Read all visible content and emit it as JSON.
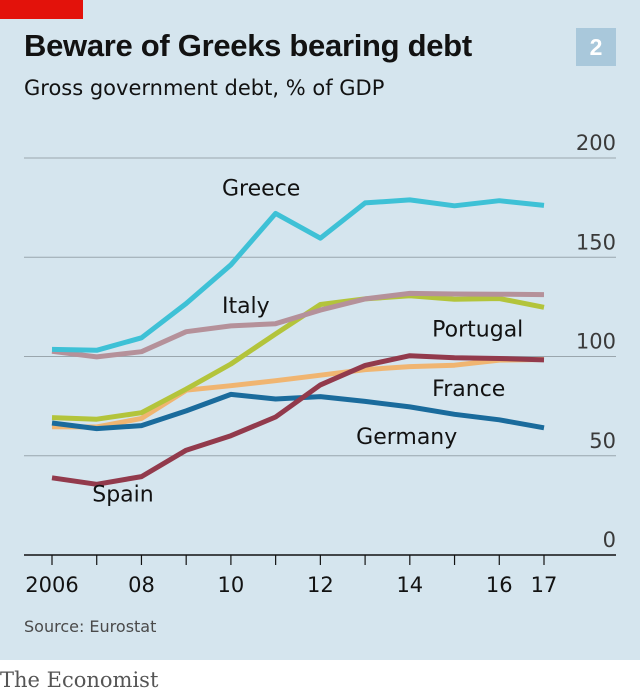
{
  "header": {
    "title": "Beware of Greeks bearing debt",
    "subtitle": "Gross government debt, % of GDP",
    "chart_number": "2"
  },
  "footer": {
    "source": "Source: Eurostat",
    "brand": "The Economist"
  },
  "colors": {
    "background": "#d5e5ee",
    "accent_red": "#e3120b",
    "Greece": "#3ec1d6",
    "Italy": "#b5919a",
    "Portugal": "#b3c43b",
    "France": "#f0b571",
    "Spain": "#923a4c",
    "Germany": "#1a6b9c"
  },
  "chart_data": {
    "type": "line",
    "title": "Beware of Greeks bearing debt",
    "subtitle": "Gross government debt, % of GDP",
    "x": [
      2006,
      2007,
      2008,
      2009,
      2010,
      2011,
      2012,
      2013,
      2014,
      2015,
      2016,
      2017
    ],
    "xticks": [
      2006,
      2008,
      2010,
      2012,
      2014,
      2016,
      2017
    ],
    "xtick_labels": [
      "2006",
      "08",
      "10",
      "12",
      "14",
      "16",
      "17"
    ],
    "ylim": [
      0,
      200
    ],
    "yticks": [
      0,
      50,
      100,
      150,
      200
    ],
    "grid": true,
    "y_axis_side": "right",
    "series": [
      {
        "name": "Greece",
        "values": [
          103.6,
          103.1,
          109.4,
          126.7,
          146.2,
          172.1,
          159.6,
          177.4,
          178.9,
          175.9,
          178.5,
          176.1
        ]
      },
      {
        "name": "Italy",
        "values": [
          102.6,
          99.8,
          102.4,
          112.5,
          115.4,
          116.5,
          123.4,
          129.0,
          131.8,
          131.5,
          131.4,
          131.2
        ]
      },
      {
        "name": "Portugal",
        "values": [
          69.2,
          68.4,
          71.7,
          83.6,
          96.2,
          111.4,
          126.2,
          129.0,
          130.6,
          128.8,
          129.2,
          124.8
        ]
      },
      {
        "name": "France",
        "values": [
          64.6,
          64.5,
          68.8,
          83.0,
          85.3,
          87.8,
          90.6,
          93.4,
          94.9,
          95.6,
          98.2,
          98.5
        ]
      },
      {
        "name": "Spain",
        "values": [
          38.9,
          35.6,
          39.5,
          52.8,
          60.1,
          69.5,
          85.7,
          95.5,
          100.4,
          99.4,
          99.0,
          98.3
        ]
      },
      {
        "name": "Germany",
        "values": [
          66.5,
          63.7,
          65.2,
          72.6,
          80.9,
          78.6,
          79.8,
          77.4,
          74.6,
          70.9,
          68.1,
          64.1
        ]
      }
    ]
  }
}
